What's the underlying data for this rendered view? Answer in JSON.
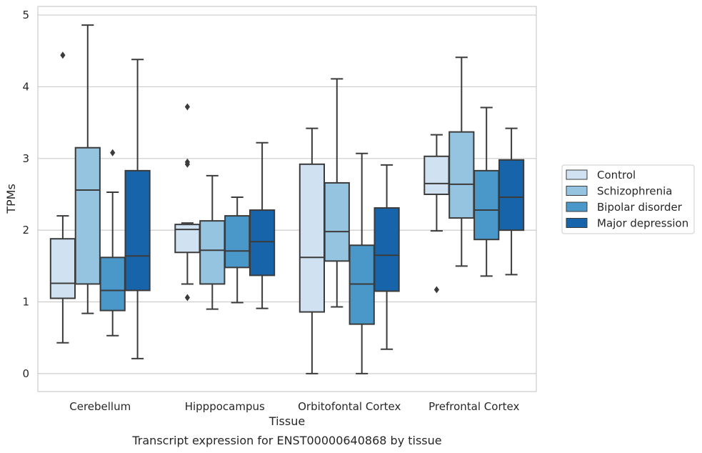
{
  "caption": "Transcript expression for ENST00000640868 by tissue",
  "chart_data": {
    "type": "box",
    "xlabel": "Tissue",
    "ylabel": "TPMs",
    "ylim": [
      -0.25,
      5.12
    ],
    "yticks": [
      0,
      1,
      2,
      3,
      4,
      5
    ],
    "grid": "horizontal",
    "legend_position": "right",
    "categories": [
      "Cerebellum",
      "Hipppocampus",
      "Orbitofontal Cortex",
      "Prefrontal Cortex"
    ],
    "series": [
      {
        "name": "Control",
        "color": "#d0e1f2",
        "boxes": [
          {
            "whislo": 0.43,
            "q1": 1.05,
            "med": 1.26,
            "q3": 1.88,
            "whishi": 2.2,
            "fliers": [
              4.44
            ]
          },
          {
            "whislo": 1.25,
            "q1": 1.69,
            "med": 2.01,
            "q3": 2.08,
            "whishi": 2.1,
            "fliers": [
              3.72,
              2.95,
              2.92,
              1.06
            ]
          },
          {
            "whislo": 0.0,
            "q1": 0.86,
            "med": 1.62,
            "q3": 2.92,
            "whishi": 3.42,
            "fliers": []
          },
          {
            "whislo": 1.99,
            "q1": 2.5,
            "med": 2.65,
            "q3": 3.03,
            "whishi": 3.33,
            "fliers": [
              1.17
            ]
          }
        ]
      },
      {
        "name": "Schizophrenia",
        "color": "#94c4df",
        "boxes": [
          {
            "whislo": 0.84,
            "q1": 1.25,
            "med": 2.56,
            "q3": 3.15,
            "whishi": 4.86,
            "fliers": []
          },
          {
            "whislo": 0.9,
            "q1": 1.25,
            "med": 1.72,
            "q3": 2.13,
            "whishi": 2.76,
            "fliers": []
          },
          {
            "whislo": 0.93,
            "q1": 1.57,
            "med": 1.98,
            "q3": 2.66,
            "whishi": 4.11,
            "fliers": []
          },
          {
            "whislo": 1.5,
            "q1": 2.17,
            "med": 2.64,
            "q3": 3.37,
            "whishi": 4.41,
            "fliers": []
          }
        ]
      },
      {
        "name": "Bipolar disorder",
        "color": "#4a98c9",
        "boxes": [
          {
            "whislo": 0.53,
            "q1": 0.88,
            "med": 1.16,
            "q3": 1.62,
            "whishi": 2.53,
            "fliers": [
              3.08
            ]
          },
          {
            "whislo": 0.99,
            "q1": 1.48,
            "med": 1.71,
            "q3": 2.2,
            "whishi": 2.46,
            "fliers": []
          },
          {
            "whislo": 0.0,
            "q1": 0.69,
            "med": 1.25,
            "q3": 1.79,
            "whishi": 3.07,
            "fliers": []
          },
          {
            "whislo": 1.36,
            "q1": 1.87,
            "med": 2.28,
            "q3": 2.83,
            "whishi": 3.71,
            "fliers": []
          }
        ]
      },
      {
        "name": "Major depression",
        "color": "#1764ab",
        "boxes": [
          {
            "whislo": 0.21,
            "q1": 1.16,
            "med": 1.64,
            "q3": 2.83,
            "whishi": 4.38,
            "fliers": []
          },
          {
            "whislo": 0.91,
            "q1": 1.37,
            "med": 1.84,
            "q3": 2.28,
            "whishi": 3.22,
            "fliers": []
          },
          {
            "whislo": 0.34,
            "q1": 1.15,
            "med": 1.65,
            "q3": 2.31,
            "whishi": 2.91,
            "fliers": []
          },
          {
            "whislo": 1.38,
            "q1": 2.0,
            "med": 2.46,
            "q3": 2.98,
            "whishi": 3.42,
            "fliers": []
          }
        ]
      }
    ]
  }
}
